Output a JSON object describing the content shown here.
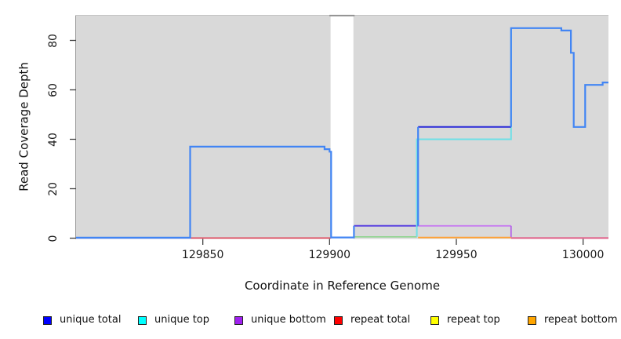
{
  "chart_data": {
    "type": "line",
    "subtype": "step-coverage",
    "title": "",
    "xlabel": "Coordinate in Reference Genome",
    "ylabel": "Read Coverage Depth",
    "xlim": [
      129800,
      130010
    ],
    "ylim": [
      0,
      90
    ],
    "x_ticks": [
      129850,
      129900,
      129950,
      130000
    ],
    "y_ticks": [
      0,
      20,
      40,
      60,
      80
    ],
    "grid": false,
    "legend_position": "bottom",
    "plot_background_fill": "#d9d9d9",
    "masked_region": {
      "x0": 129900.4,
      "x1": 129909.4,
      "fill": "#ffffff",
      "top_border_color": "#8e8e8e"
    },
    "axis_color": "#404040",
    "series": [
      {
        "name": "unique total",
        "color": "#0000ff",
        "steps": [
          [
            129800,
            0
          ],
          [
            129845,
            37
          ],
          [
            129898,
            36
          ],
          [
            129900,
            35
          ],
          [
            129901,
            0
          ],
          [
            129910,
            5
          ],
          [
            129935,
            45
          ],
          [
            129972,
            85
          ],
          [
            129991,
            84
          ],
          [
            129995,
            75
          ],
          [
            129996,
            45
          ],
          [
            130001,
            62
          ],
          [
            130008,
            63
          ],
          [
            130010,
            63
          ]
        ]
      },
      {
        "name": "unique top",
        "color": "#00ffff",
        "steps": [
          [
            129800,
            0
          ],
          [
            129935,
            40
          ],
          [
            129972,
            85
          ],
          [
            129991,
            84
          ],
          [
            129995,
            75
          ],
          [
            129996,
            45
          ],
          [
            130001,
            62
          ],
          [
            130008,
            63
          ],
          [
            130010,
            63
          ]
        ]
      },
      {
        "name": "unique bottom",
        "color": "#a020f0",
        "steps": [
          [
            129800,
            0
          ],
          [
            129910,
            5
          ],
          [
            129972,
            0
          ],
          [
            130010,
            0
          ]
        ]
      },
      {
        "name": "repeat total",
        "color": "#ff0000",
        "steps": [
          [
            129800,
            0
          ],
          [
            130010,
            0
          ]
        ]
      },
      {
        "name": "repeat top",
        "color": "#ffff00",
        "steps": [
          [
            129800,
            0
          ],
          [
            130010,
            0
          ]
        ]
      },
      {
        "name": "repeat bottom",
        "color": "#ffa500",
        "steps": [
          [
            129800,
            0
          ],
          [
            130010,
            0
          ]
        ]
      }
    ],
    "rendered_segments": [
      {
        "name": "baseline-left-blueviolet",
        "color": "#6b68e8",
        "width": 1.7,
        "points": [
          [
            129800,
            0.05
          ],
          [
            129845,
            0.05
          ]
        ]
      },
      {
        "name": "baseline-mid-red",
        "color": "#e0455a",
        "width": 1.7,
        "points": [
          [
            129845,
            0.05
          ],
          [
            129900.6,
            0.05
          ]
        ]
      },
      {
        "name": "baseline-right-pink",
        "color": "#e25c86",
        "width": 1.8,
        "points": [
          [
            129971.6,
            0.05
          ],
          [
            130010,
            0.05
          ]
        ]
      },
      {
        "name": "green-low-line",
        "color": "#8fd48f",
        "width": 1.7,
        "points": [
          [
            129909.6,
            0.55
          ],
          [
            129934.4,
            0.55
          ]
        ]
      },
      {
        "name": "orange-low-line",
        "color": "#ffa033",
        "width": 1.8,
        "points": [
          [
            129934.9,
            0.25
          ],
          [
            129971.6,
            0.25
          ]
        ]
      },
      {
        "name": "indigo-5-line",
        "color": "#5b43e0",
        "width": 2,
        "points": [
          [
            129909.6,
            5
          ],
          [
            129934.9,
            5
          ]
        ]
      },
      {
        "name": "violet-5-line",
        "color": "#c77df0",
        "width": 1.8,
        "points": [
          [
            129934.9,
            5
          ],
          [
            129971.6,
            5
          ]
        ]
      },
      {
        "name": "purple-drop",
        "color": "#b25ce8",
        "width": 1.7,
        "points": [
          [
            129971.6,
            5
          ],
          [
            129971.6,
            0.4
          ]
        ]
      },
      {
        "name": "cyan-40-line",
        "color": "#6fe0e6",
        "width": 2,
        "points": [
          [
            129934.4,
            0.55
          ],
          [
            129934.4,
            40
          ],
          [
            129971.6,
            40
          ],
          [
            129971.6,
            85
          ]
        ]
      },
      {
        "name": "darkblue-45-line",
        "color": "#2a2ad8",
        "width": 2,
        "points": [
          [
            129934.9,
            45
          ],
          [
            129971.6,
            45
          ]
        ]
      },
      {
        "name": "azure-main-left",
        "color": "#4285f4",
        "width": 2.2,
        "points": [
          [
            129800,
            0.2
          ],
          [
            129845,
            0.2
          ],
          [
            129845,
            37
          ],
          [
            129898,
            37
          ],
          [
            129898,
            36
          ],
          [
            129900,
            36
          ],
          [
            129900,
            35
          ],
          [
            129900.6,
            35
          ],
          [
            129900.6,
            0.3
          ],
          [
            129909.6,
            0.3
          ],
          [
            129909.6,
            5
          ]
        ]
      },
      {
        "name": "azure-rise-45",
        "color": "#4285f4",
        "width": 2.2,
        "points": [
          [
            129934.9,
            5
          ],
          [
            129934.9,
            45
          ]
        ]
      },
      {
        "name": "azure-main-right",
        "color": "#4285f4",
        "width": 2.2,
        "points": [
          [
            129971.6,
            45
          ],
          [
            129971.6,
            85
          ],
          [
            129991.4,
            85
          ],
          [
            129991.4,
            84
          ],
          [
            129995.2,
            84
          ],
          [
            129995.2,
            75
          ],
          [
            129996.3,
            75
          ],
          [
            129996.3,
            45
          ],
          [
            130000.8,
            45
          ],
          [
            130000.8,
            62
          ],
          [
            130007.7,
            62
          ],
          [
            130007.7,
            63
          ],
          [
            130010,
            63
          ]
        ]
      }
    ]
  },
  "legend": {
    "items": [
      {
        "label": "unique total",
        "color": "#0000ff"
      },
      {
        "label": "unique top",
        "color": "#00ffff"
      },
      {
        "label": "unique bottom",
        "color": "#a020f0"
      },
      {
        "label": "repeat total",
        "color": "#ff0000"
      },
      {
        "label": "repeat top",
        "color": "#ffff00"
      },
      {
        "label": "repeat bottom",
        "color": "#ffa500"
      }
    ]
  }
}
